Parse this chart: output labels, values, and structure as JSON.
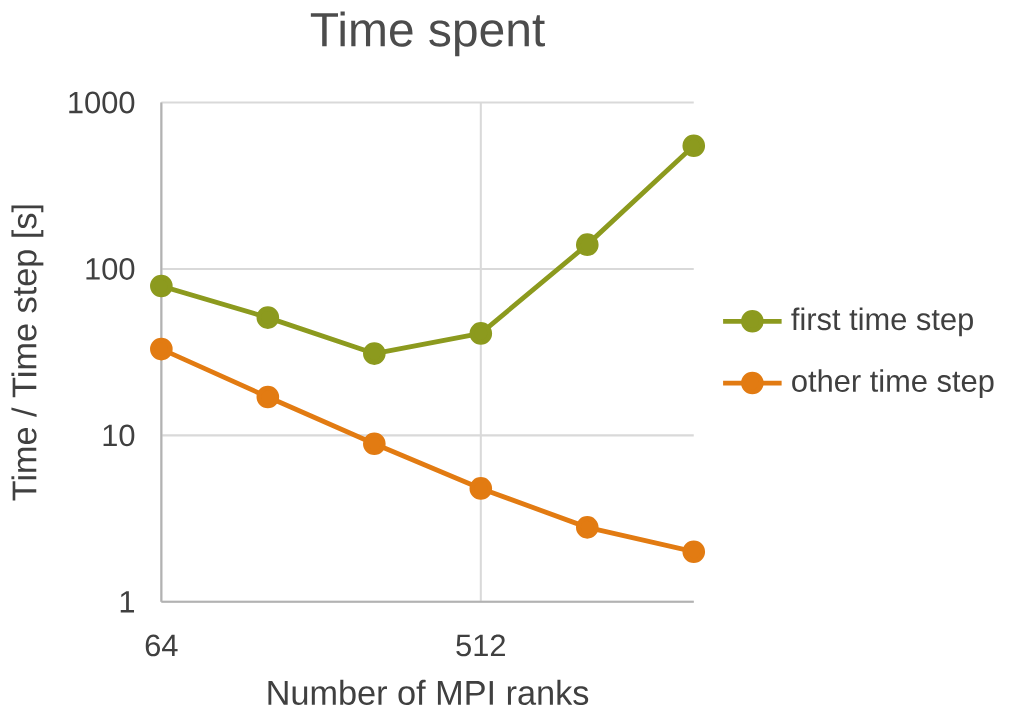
{
  "chart_data": {
    "type": "line",
    "title": "Time spent",
    "xlabel": "Number of MPI ranks",
    "ylabel": "Time / Time step [s]",
    "x": [
      64,
      128,
      256,
      512,
      1024,
      2048
    ],
    "series": [
      {
        "name": "first time step",
        "color": "#8c9a1e",
        "values": [
          79,
          51,
          31,
          41,
          140,
          550
        ]
      },
      {
        "name": "other time step",
        "color": "#e27b12",
        "values": [
          33,
          17,
          8.9,
          4.8,
          2.8,
          2.0
        ]
      }
    ],
    "xlim": [
      64,
      2048
    ],
    "xticks": [
      64,
      512
    ],
    "ylim": [
      1,
      1000
    ],
    "yticks": [
      1,
      10,
      100,
      1000
    ],
    "log": "xy",
    "grid": true,
    "legend": "right",
    "marker": "circle",
    "line_style": "solid"
  }
}
